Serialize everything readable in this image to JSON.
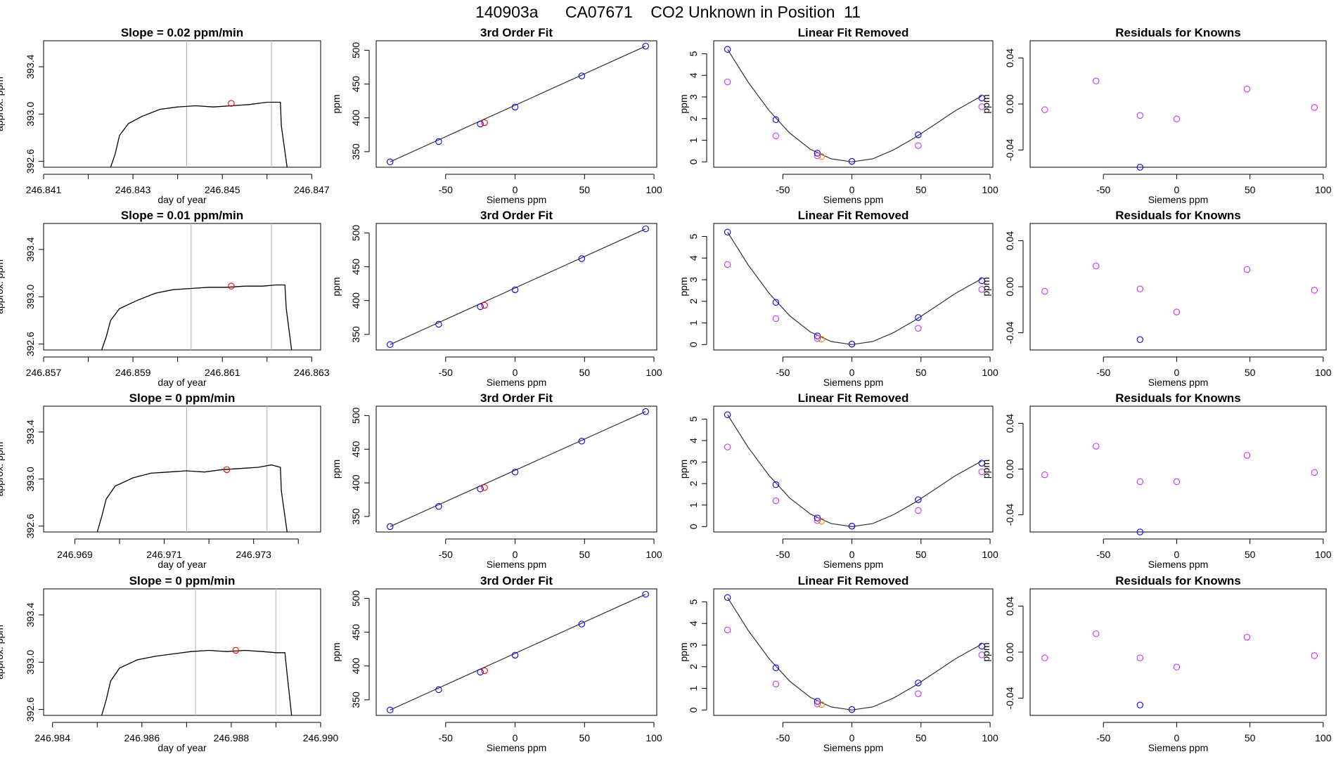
{
  "figure": {
    "title": "140903a      CA07671    CO2 Unknown in Position  11",
    "colors": {
      "trace": "#000000",
      "unknown": "#ff0000",
      "known_fit": "#0000ff",
      "known_lin": "#cc33ff",
      "unknown_lin": "#ff8800",
      "vline": "#bbbbbb"
    }
  },
  "chart_data": [
    {
      "type": "line",
      "panel": "trace-1",
      "title": "Slope =  0.02  ppm/min",
      "xlabel": "day of year",
      "ylabel": "approx. ppm",
      "xlim": [
        246.841,
        246.8472
      ],
      "ylim": [
        392.55,
        393.62
      ],
      "xticks": [
        "246.841",
        "246.843",
        "246.845",
        "246.847"
      ],
      "xticks_minor": [
        246.842,
        246.844,
        246.846
      ],
      "yticks": [
        "392.6",
        "393.0",
        "393.4"
      ],
      "vlines": [
        246.8442,
        246.8461
      ],
      "marker": {
        "x": 246.8452,
        "y": 393.09
      },
      "x": [
        246.8425,
        246.8426,
        246.8427,
        246.8429,
        246.8432,
        246.8436,
        246.844,
        246.8444,
        246.8448,
        246.8452,
        246.8456,
        246.846,
        246.8462,
        246.8463,
        246.84632,
        246.84645
      ],
      "y": [
        392.55,
        392.66,
        392.82,
        392.92,
        392.98,
        393.04,
        393.06,
        393.07,
        393.06,
        393.07,
        393.08,
        393.1,
        393.1,
        393.1,
        392.9,
        392.55
      ]
    },
    {
      "type": "line",
      "panel": "trace-2",
      "title": "Slope =  0.01  ppm/min",
      "xlabel": "day of year",
      "ylabel": "approx. ppm",
      "xlim": [
        246.857,
        246.8632
      ],
      "ylim": [
        392.55,
        393.62
      ],
      "xticks": [
        "246.857",
        "246.859",
        "246.861",
        "246.863"
      ],
      "xticks_minor": [
        246.858,
        246.86,
        246.862
      ],
      "yticks": [
        "392.6",
        "393.0",
        "393.4"
      ],
      "vlines": [
        246.8603,
        246.8621
      ],
      "marker": {
        "x": 246.8612,
        "y": 393.09
      },
      "x": [
        246.8583,
        246.8584,
        246.8585,
        246.8587,
        246.8591,
        246.8595,
        246.8599,
        246.8603,
        246.8607,
        246.8611,
        246.8615,
        246.8619,
        246.8622,
        246.8624,
        246.86243,
        246.86255
      ],
      "y": [
        392.55,
        392.66,
        392.8,
        392.9,
        392.97,
        393.03,
        393.06,
        393.07,
        393.08,
        393.08,
        393.09,
        393.09,
        393.1,
        393.1,
        392.9,
        392.55
      ]
    },
    {
      "type": "line",
      "panel": "trace-3",
      "title": "Slope =  0  ppm/min",
      "xlabel": "day of year",
      "ylabel": "approx. ppm",
      "xlim": [
        246.9683,
        246.9745
      ],
      "ylim": [
        392.55,
        393.62
      ],
      "xticks": [
        "246.969",
        "246.971",
        "246.973"
      ],
      "xticks_minor": [
        246.97,
        246.972,
        246.974
      ],
      "yticks": [
        "392.6",
        "393.0",
        "393.4"
      ],
      "vlines": [
        246.9715,
        246.9733
      ],
      "marker": {
        "x": 246.9724,
        "y": 393.08
      },
      "x": [
        246.9695,
        246.9696,
        246.9697,
        246.9699,
        246.9703,
        246.9707,
        246.9711,
        246.9715,
        246.9719,
        246.9723,
        246.9727,
        246.9731,
        246.9734,
        246.9736,
        246.97362,
        246.97375
      ],
      "y": [
        392.55,
        392.68,
        392.83,
        392.94,
        393.01,
        393.05,
        393.06,
        393.07,
        393.06,
        393.08,
        393.09,
        393.1,
        393.12,
        393.1,
        392.9,
        392.55
      ]
    },
    {
      "type": "line",
      "panel": "trace-4",
      "title": "Slope =  0  ppm/min",
      "xlabel": "day of year",
      "ylabel": "approx. ppm",
      "xlim": [
        246.9838,
        246.99
      ],
      "ylim": [
        392.55,
        393.62
      ],
      "xticks": [
        "246.984",
        "246.986",
        "246.988",
        "246.990"
      ],
      "xticks_minor": [
        246.985,
        246.987,
        246.989
      ],
      "yticks": [
        "392.6",
        "393.0",
        "393.4"
      ],
      "vlines": [
        246.9872,
        246.989
      ],
      "marker": {
        "x": 246.9881,
        "y": 393.1
      },
      "x": [
        246.9851,
        246.9852,
        246.9853,
        246.9855,
        246.9859,
        246.9863,
        246.9867,
        246.9871,
        246.9875,
        246.9879,
        246.9883,
        246.9887,
        246.989,
        246.9892,
        246.98925,
        246.98935
      ],
      "y": [
        392.55,
        392.68,
        392.84,
        392.95,
        393.02,
        393.05,
        393.07,
        393.09,
        393.1,
        393.09,
        393.1,
        393.09,
        393.08,
        393.08,
        392.9,
        392.55
      ]
    },
    {
      "type": "scatter",
      "panel": "fit",
      "title": "3rd Order Fit",
      "xlabel": "Siemens ppm",
      "ylabel": "ppm",
      "xlim": [
        -100,
        102
      ],
      "ylim": [
        327,
        514
      ],
      "xticks": [
        "-50",
        "0",
        "50",
        "100"
      ],
      "yticks": [
        "350",
        "400",
        "450",
        "500"
      ],
      "knowns": {
        "x": [
          -90,
          -55,
          -25,
          0,
          48,
          94
        ],
        "y": [
          335,
          365,
          391,
          416,
          462,
          506
        ]
      },
      "unknown": {
        "x": -22,
        "y": 393
      }
    },
    {
      "type": "scatter",
      "panel": "linfit",
      "title": "Linear Fit Removed",
      "xlabel": "Siemens ppm",
      "ylabel": "ppm",
      "xlim": [
        -100,
        102
      ],
      "ylim": [
        -0.25,
        5.6
      ],
      "xticks": [
        "-50",
        "0",
        "50",
        "100"
      ],
      "yticks": [
        "0",
        "1",
        "2",
        "3",
        "4",
        "5"
      ],
      "knowns": {
        "x": [
          -90,
          -55,
          -25,
          0,
          48,
          94
        ],
        "y": [
          5.2,
          1.95,
          0.4,
          0.02,
          1.25,
          2.95
        ]
      },
      "knowns_lin": {
        "x": [
          -90,
          -55,
          -25,
          0,
          48,
          94
        ],
        "y": [
          3.7,
          1.2,
          0.28,
          0.02,
          0.75,
          2.55
        ]
      },
      "unknown": {
        "x": -22,
        "y": 0.25
      },
      "curve": {
        "x": [
          -90,
          -75,
          -60,
          -45,
          -30,
          -15,
          0,
          15,
          30,
          45,
          60,
          75,
          94
        ],
        "y": [
          5.2,
          3.68,
          2.38,
          1.33,
          0.58,
          0.14,
          0.0,
          0.14,
          0.55,
          1.1,
          1.73,
          2.37,
          3.05
        ]
      }
    },
    {
      "type": "scatter",
      "panel": "residuals",
      "title": "Residuals for Knowns",
      "xlabel": "Siemens ppm",
      "ylabel": "ppm",
      "xlim": [
        -100,
        102
      ],
      "ylim": [
        -0.055,
        0.055
      ],
      "xticks": [
        "-50",
        "0",
        "50",
        "100"
      ],
      "yticks": [
        "-0.04",
        "0.00",
        "0.04"
      ],
      "rows": [
        {
          "x": [
            -90,
            -55,
            -25,
            0,
            48,
            94
          ],
          "y": [
            -0.005,
            0.02,
            -0.01,
            -0.013,
            0.013,
            -0.003
          ],
          "blue": {
            "x": -25,
            "y": -0.055
          }
        },
        {
          "x": [
            -90,
            -55,
            -25,
            0,
            48,
            94
          ],
          "y": [
            -0.004,
            0.018,
            -0.002,
            -0.022,
            0.015,
            -0.003
          ],
          "blue": {
            "x": -25,
            "y": -0.046
          }
        },
        {
          "x": [
            -90,
            -55,
            -25,
            0,
            48,
            94
          ],
          "y": [
            -0.005,
            0.02,
            -0.011,
            -0.011,
            0.012,
            -0.003
          ],
          "blue": {
            "x": -25,
            "y": -0.055
          }
        },
        {
          "x": [
            -90,
            -55,
            -25,
            0,
            48,
            94
          ],
          "y": [
            -0.005,
            0.016,
            -0.005,
            -0.013,
            0.013,
            -0.003
          ],
          "blue": {
            "x": -25,
            "y": -0.046
          }
        }
      ]
    }
  ]
}
